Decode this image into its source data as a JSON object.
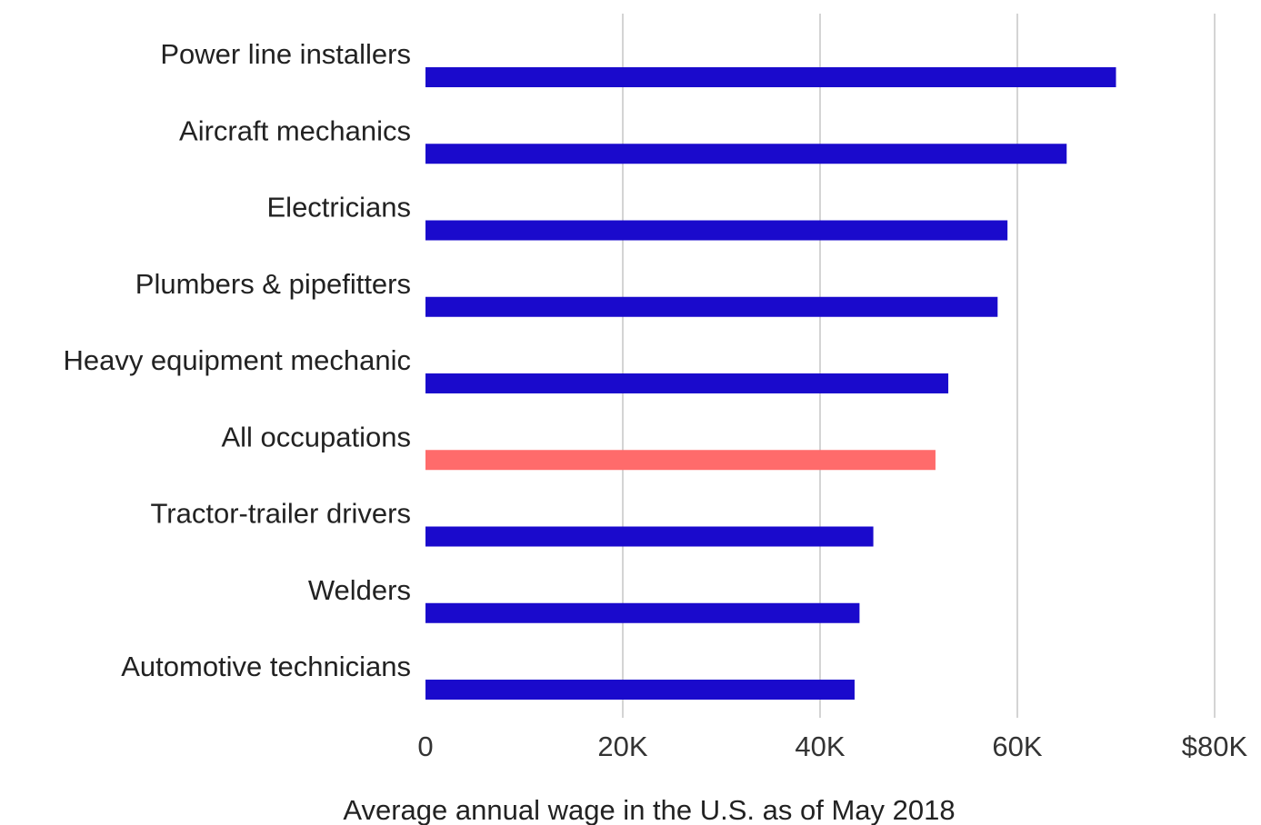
{
  "chart_data": {
    "type": "bar",
    "orientation": "horizontal",
    "categories": [
      "Power line installers",
      "Aircraft mechanics",
      "Electricians",
      "Plumbers & pipefitters",
      "Heavy equipment mechanic",
      "All occupations",
      "Tractor-trailer drivers",
      "Welders",
      "Automotive technicians"
    ],
    "values": [
      70000,
      65000,
      59000,
      58000,
      53000,
      51700,
      45400,
      44000,
      43500
    ],
    "highlight_category": "All occupations",
    "xlabel": "Average annual wage in the U.S. as of May 2018",
    "ylabel": "",
    "xlim": [
      0,
      80000
    ],
    "xticks": [
      {
        "value": 0,
        "label": "0"
      },
      {
        "value": 20000,
        "label": "20K"
      },
      {
        "value": 40000,
        "label": "40K"
      },
      {
        "value": 60000,
        "label": "60K"
      },
      {
        "value": 80000,
        "label": "$80K"
      }
    ],
    "grid": "vertical",
    "legend": "none",
    "colors": {
      "bar": "#1a0acc",
      "highlight": "#ff6b6b",
      "grid": "#d4d4d4",
      "text": "#222222"
    }
  }
}
